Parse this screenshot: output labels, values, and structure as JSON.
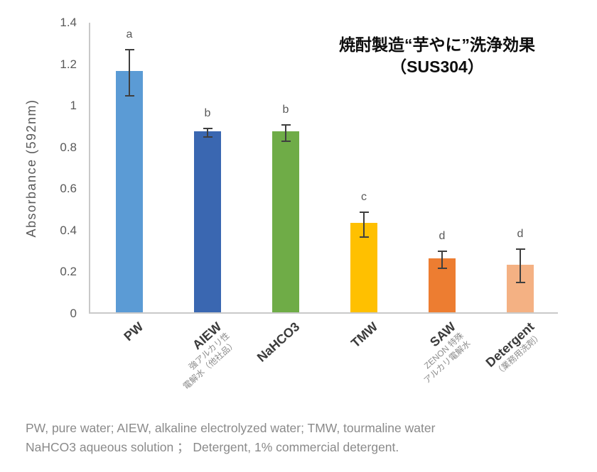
{
  "title": {
    "line1": "焼酎製造“芋やに”洗浄効果",
    "line2": "（SUS304）"
  },
  "chart_data": {
    "type": "bar",
    "title": "焼酎製造“芋やに”洗浄効果（SUS304）",
    "xlabel": "",
    "ylabel": "Absorbance (592nm)",
    "ylim": [
      0,
      1.4
    ],
    "grid": false,
    "legend": "none",
    "yticks": [
      0,
      0.2,
      0.4,
      0.6,
      0.8,
      1,
      1.2,
      1.4
    ],
    "ytick_labels": [
      "0",
      "0.2",
      "0.4",
      "0.6",
      "0.8",
      "1",
      "1.2",
      "1.4"
    ],
    "error_bar_color": "#3f3f3f",
    "categories": [
      {
        "label": "PW",
        "sublabels": [],
        "value": 1.16,
        "error": 0.11,
        "letter": "a",
        "color": "#5B9BD5"
      },
      {
        "label": "AIEW",
        "sublabels": [
          "強アルカリ性",
          "電解水（他社品）"
        ],
        "value": 0.87,
        "error": 0.02,
        "letter": "b",
        "color": "#3A67B1"
      },
      {
        "label": "NaHCO3",
        "sublabels": [],
        "value": 0.87,
        "error": 0.04,
        "letter": "b",
        "color": "#6FAC47"
      },
      {
        "label": "TMW",
        "sublabels": [],
        "value": 0.43,
        "error": 0.06,
        "letter": "c",
        "color": "#FFC000"
      },
      {
        "label": "SAW",
        "sublabels": [
          "ZENON 特殊",
          "アルカリ電解水"
        ],
        "value": 0.26,
        "error": 0.04,
        "letter": "d",
        "color": "#ED7D31"
      },
      {
        "label": "Detergent",
        "sublabels": [
          "（業務用洗剤）"
        ],
        "value": 0.23,
        "error": 0.08,
        "letter": "d",
        "color": "#F4B183"
      }
    ]
  },
  "footer": {
    "line1": "PW, pure water; AIEW, alkaline electrolyzed water; TMW, tourmaline water",
    "line2": "NaHCO3 aqueous solution ； Detergent, 1% commercial detergent."
  }
}
